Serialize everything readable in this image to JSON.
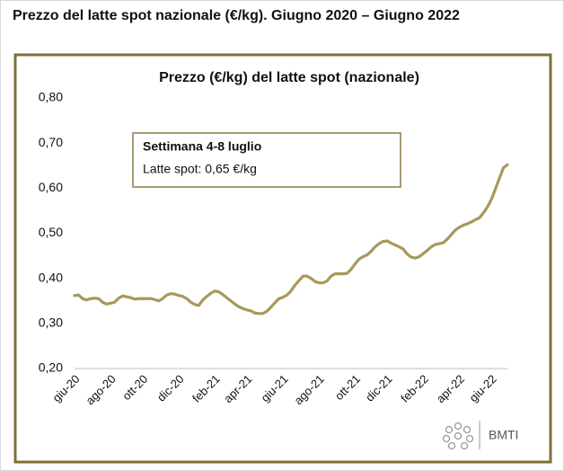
{
  "header": {
    "title": "Prezzo del latte spot nazionale (€/kg). Giugno 2020 – Giugno 2022"
  },
  "logo": {
    "text": "BMTI"
  },
  "chart_data": {
    "type": "line",
    "title": "Prezzo (€/kg) del latte spot (nazionale)",
    "annotation": {
      "title": "Settimana 4-8 luglio",
      "text": "Latte spot: 0,65 €/kg"
    },
    "categories": [
      "giu-20",
      null,
      null,
      null,
      null,
      null,
      null,
      null,
      null,
      "ago-20",
      null,
      null,
      null,
      null,
      null,
      null,
      null,
      "ott-20",
      null,
      null,
      null,
      null,
      null,
      null,
      null,
      null,
      "dic-20",
      null,
      null,
      null,
      null,
      null,
      null,
      null,
      null,
      "feb-21",
      null,
      null,
      null,
      null,
      null,
      null,
      null,
      "apr-21",
      null,
      null,
      null,
      null,
      null,
      null,
      null,
      null,
      "giu-21",
      null,
      null,
      null,
      null,
      null,
      null,
      null,
      null,
      "ago-21",
      null,
      null,
      null,
      null,
      null,
      null,
      null,
      null,
      "ott-21",
      null,
      null,
      null,
      null,
      null,
      null,
      null,
      "dic-21",
      null,
      null,
      null,
      null,
      null,
      null,
      null,
      null,
      "feb-22",
      null,
      null,
      null,
      null,
      null,
      null,
      null,
      null,
      "apr-22",
      null,
      null,
      null,
      null,
      null,
      null,
      null,
      "giu-22",
      null,
      null,
      null,
      null
    ],
    "series": [
      {
        "color": "#a8995a",
        "values": [
          0.362,
          0.363,
          0.355,
          0.352,
          0.355,
          0.356,
          0.355,
          0.347,
          0.343,
          0.345,
          0.347,
          0.356,
          0.361,
          0.359,
          0.357,
          0.354,
          0.355,
          0.355,
          0.355,
          0.355,
          0.353,
          0.35,
          0.355,
          0.363,
          0.366,
          0.365,
          0.362,
          0.36,
          0.355,
          0.347,
          0.342,
          0.34,
          0.352,
          0.36,
          0.367,
          0.372,
          0.37,
          0.364,
          0.357,
          0.35,
          0.343,
          0.337,
          0.333,
          0.33,
          0.328,
          0.323,
          0.322,
          0.322,
          0.327,
          0.336,
          0.346,
          0.355,
          0.358,
          0.363,
          0.372,
          0.385,
          0.395,
          0.405,
          0.405,
          0.4,
          0.393,
          0.39,
          0.39,
          0.394,
          0.405,
          0.41,
          0.41,
          0.41,
          0.411,
          0.42,
          0.432,
          0.443,
          0.448,
          0.452,
          0.46,
          0.47,
          0.477,
          0.482,
          0.483,
          0.478,
          0.474,
          0.47,
          0.465,
          0.454,
          0.447,
          0.445,
          0.448,
          0.455,
          0.462,
          0.47,
          0.475,
          0.477,
          0.479,
          0.487,
          0.497,
          0.507,
          0.513,
          0.518,
          0.521,
          0.525,
          0.53,
          0.534,
          0.545,
          0.558,
          0.575,
          0.598,
          0.622,
          0.645,
          0.652
        ]
      }
    ],
    "ylim": [
      0.2,
      0.8
    ],
    "yticks": [
      {
        "value": 0.2,
        "label": "0,20"
      },
      {
        "value": 0.3,
        "label": "0,30"
      },
      {
        "value": 0.4,
        "label": "0,40"
      },
      {
        "value": 0.5,
        "label": "0,50"
      },
      {
        "value": 0.6,
        "label": "0,60"
      },
      {
        "value": 0.7,
        "label": "0,70"
      },
      {
        "value": 0.8,
        "label": "0,80"
      }
    ],
    "grid": false
  }
}
